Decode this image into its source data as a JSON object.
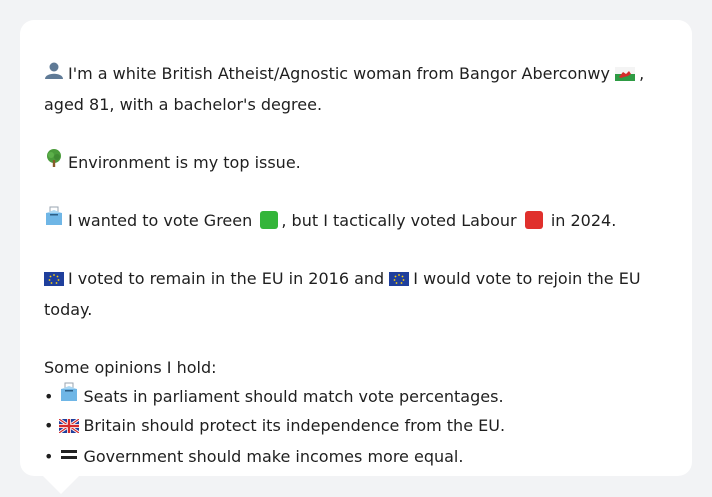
{
  "profile": {
    "intro_line1": "I'm a white British Atheist/Agnostic woman from Bangor Aberconwy",
    "intro_line1_end": ",",
    "intro_line2": "aged 81, with a bachelor's degree.",
    "top_issue": "Environment is my top issue.",
    "vote_part1": "I wanted to vote Green",
    "vote_part2": ", but I tactically voted Labour",
    "vote_part3": "in 2024.",
    "eu_part1": "I voted to remain in the EU in 2016 and",
    "eu_part2": "I would vote to rejoin the EU",
    "eu_part3": "today.",
    "opinions_header": "Some opinions I hold:",
    "opinions": [
      {
        "bullet": "•",
        "text": "Seats in parliament should match vote percentages."
      },
      {
        "bullet": "•",
        "text": "Britain should protect its independence from the EU."
      },
      {
        "bullet": "•",
        "text": "Government should make incomes more equal."
      }
    ]
  },
  "icons": {
    "person": "person-icon",
    "wales_flag": "wales-flag-icon",
    "tree": "tree-icon",
    "ballot": "ballot-box-icon",
    "eu_flag": "eu-flag-icon",
    "uk_flag": "uk-flag-icon",
    "equals": "equals-icon"
  },
  "colors": {
    "green": "#34b53a",
    "labour_red": "#e0302c",
    "eu_blue": "#1f3f9c",
    "text": "#1f1f1f",
    "card": "#ffffff",
    "background": "#f2f3f5"
  }
}
